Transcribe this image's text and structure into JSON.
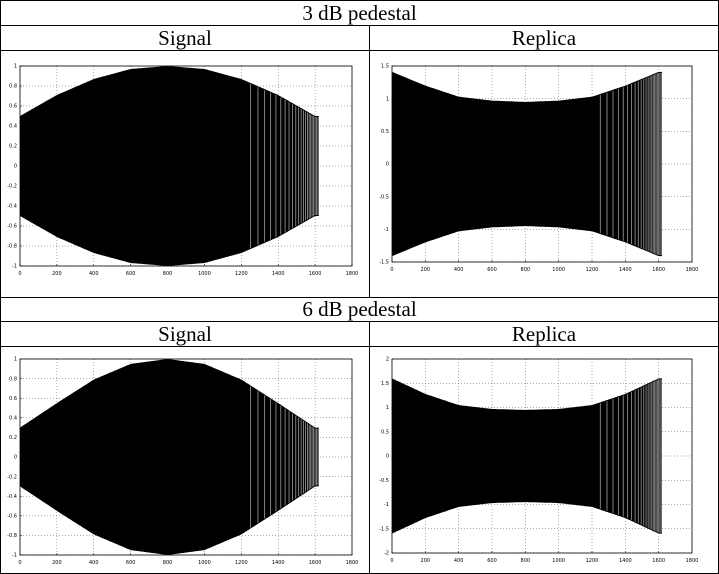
{
  "table": {
    "sections": [
      {
        "heading": "3 dB pedestal",
        "columns": [
          "Signal",
          "Replica"
        ],
        "plots": [
          {
            "x_ticks": [
              "0",
              "200",
              "400",
              "600",
              "800",
              "1000",
              "1200",
              "1400",
              "1600",
              "1800"
            ],
            "y_ticks": [
              "1",
              "0.8",
              "0.6",
              "0.4",
              "0.2",
              "0",
              "-0.2",
              "-0.4",
              "-0.6",
              "-0.8",
              "-1"
            ]
          },
          {
            "x_ticks": [
              "0",
              "200",
              "400",
              "600",
              "800",
              "1000",
              "1200",
              "1400",
              "1600",
              "1800"
            ],
            "y_ticks": [
              "1.5",
              "1",
              "0.5",
              "0",
              "-0.5",
              "-1",
              "-1.5"
            ]
          }
        ]
      },
      {
        "heading": "6 dB pedestal",
        "columns": [
          "Signal",
          "Replica"
        ],
        "plots": [
          {
            "x_ticks": [
              "0",
              "200",
              "400",
              "600",
              "800",
              "1000",
              "1200",
              "1400",
              "1600",
              "1800"
            ],
            "y_ticks": [
              "1",
              "0.8",
              "0.6",
              "0.4",
              "0.2",
              "0",
              "-0.2",
              "-0.4",
              "-0.6",
              "-0.8",
              "-1"
            ]
          },
          {
            "x_ticks": [
              "0",
              "200",
              "400",
              "600",
              "800",
              "1000",
              "1200",
              "1400",
              "1600",
              "1800"
            ],
            "y_ticks": [
              "2",
              "1.5",
              "1",
              "0.5",
              "0",
              "-0.5",
              "-1",
              "-1.5",
              "-2"
            ]
          }
        ]
      }
    ]
  },
  "chart_data": [
    {
      "type": "line",
      "title": "",
      "xlabel": "",
      "ylabel": "",
      "xlim": [
        0,
        1800
      ],
      "ylim": [
        -1,
        1
      ],
      "grid": true,
      "series": [
        {
          "envelope_x": [
            0,
            200,
            400,
            600,
            800,
            1000,
            1200,
            1400,
            1600,
            1620
          ],
          "envelope_y": [
            0.5,
            0.71,
            0.87,
            0.97,
            1.0,
            0.97,
            0.87,
            0.71,
            0.5,
            0.5
          ]
        }
      ]
    },
    {
      "type": "line",
      "title": "",
      "xlabel": "",
      "ylabel": "",
      "xlim": [
        0,
        1800
      ],
      "ylim": [
        -1.5,
        1.5
      ],
      "grid": true,
      "series": [
        {
          "envelope_x": [
            0,
            200,
            400,
            600,
            800,
            1000,
            1200,
            1400,
            1600,
            1620
          ],
          "envelope_y": [
            1.41,
            1.2,
            1.03,
            0.97,
            0.95,
            0.97,
            1.03,
            1.2,
            1.41,
            1.41
          ]
        }
      ]
    },
    {
      "type": "line",
      "title": "",
      "xlabel": "",
      "ylabel": "",
      "xlim": [
        0,
        1800
      ],
      "ylim": [
        -1,
        1
      ],
      "grid": true,
      "series": [
        {
          "envelope_x": [
            0,
            200,
            400,
            600,
            800,
            1000,
            1200,
            1400,
            1600,
            1620
          ],
          "envelope_y": [
            0.3,
            0.55,
            0.79,
            0.95,
            1.0,
            0.95,
            0.79,
            0.55,
            0.3,
            0.3
          ]
        }
      ]
    },
    {
      "type": "line",
      "title": "",
      "xlabel": "",
      "ylabel": "",
      "xlim": [
        0,
        1800
      ],
      "ylim": [
        -2,
        2
      ],
      "grid": true,
      "series": [
        {
          "envelope_x": [
            0,
            200,
            400,
            600,
            800,
            1000,
            1200,
            1400,
            1600,
            1620
          ],
          "envelope_y": [
            1.6,
            1.28,
            1.05,
            0.97,
            0.95,
            0.97,
            1.05,
            1.28,
            1.6,
            1.6
          ]
        }
      ]
    }
  ]
}
